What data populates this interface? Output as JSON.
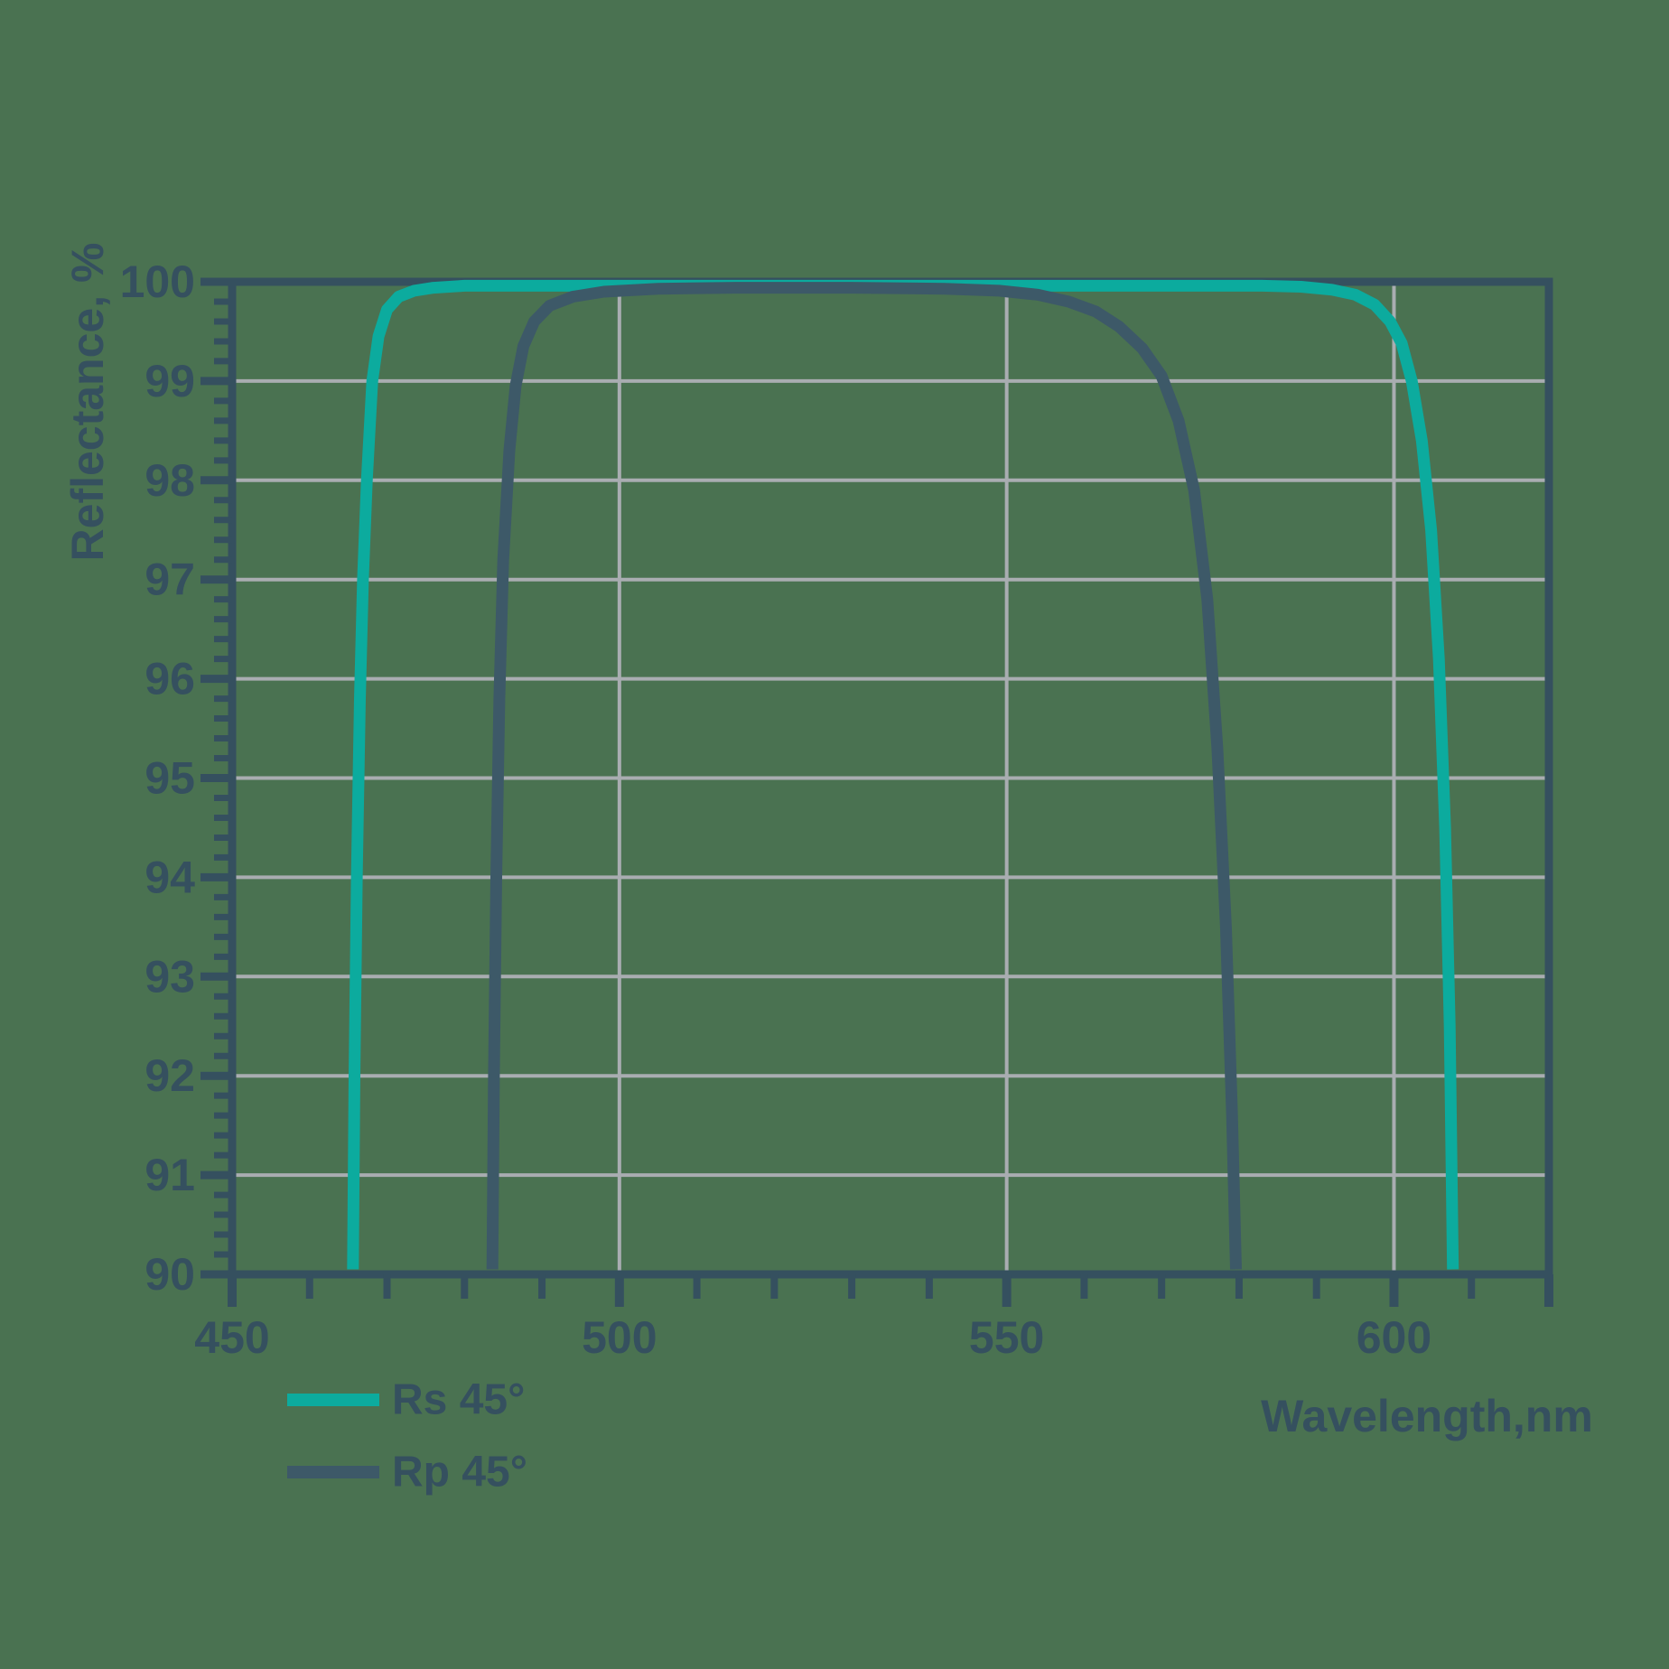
{
  "colors": {
    "background": "#4a7251",
    "axis": "#35505f",
    "grid": "#a9adb1",
    "rs": "#0cab9e",
    "rp": "#3d5968"
  },
  "chart_data": {
    "type": "line",
    "title": "",
    "xlabel": "Wavelength,nm",
    "ylabel": "Reflectance, %",
    "xlim": [
      450,
      620
    ],
    "ylim": [
      90,
      100
    ],
    "x_major_ticks": [
      450,
      500,
      550,
      600
    ],
    "x_edge_tick": 620,
    "x_minor_step": 10,
    "y_major_ticks": [
      100,
      99,
      98,
      97,
      96,
      95,
      94,
      93,
      92,
      91,
      90
    ],
    "y_minor_step": 0.2,
    "x_gridlines": [
      500,
      550,
      600
    ],
    "y_gridlines": [
      99,
      98,
      97,
      96,
      95,
      94,
      93,
      92,
      91
    ],
    "grid": "on",
    "legend_position": "bottom-left",
    "series": [
      {
        "name": "Rs 45°",
        "color": "#0cab9e",
        "points": [
          [
            465.6,
            90.05
          ],
          [
            465.8,
            92
          ],
          [
            466.1,
            94
          ],
          [
            466.5,
            95.8
          ],
          [
            466.9,
            97
          ],
          [
            467.4,
            98
          ],
          [
            468.1,
            99
          ],
          [
            468.9,
            99.45
          ],
          [
            470,
            99.72
          ],
          [
            471.5,
            99.85
          ],
          [
            473.5,
            99.91
          ],
          [
            476,
            99.94
          ],
          [
            480,
            99.96
          ],
          [
            490,
            99.96
          ],
          [
            510,
            99.96
          ],
          [
            530,
            99.96
          ],
          [
            550,
            99.96
          ],
          [
            570,
            99.96
          ],
          [
            583,
            99.96
          ],
          [
            588,
            99.95
          ],
          [
            592,
            99.92
          ],
          [
            595,
            99.87
          ],
          [
            597.5,
            99.77
          ],
          [
            599.5,
            99.6
          ],
          [
            601,
            99.38
          ],
          [
            602.3,
            99
          ],
          [
            603.6,
            98.4
          ],
          [
            604.8,
            97.5
          ],
          [
            605.8,
            96.2
          ],
          [
            606.6,
            94.5
          ],
          [
            607.2,
            92.5
          ],
          [
            607.6,
            90.05
          ]
        ]
      },
      {
        "name": "Rp 45°",
        "color": "#3d5968",
        "points": [
          [
            483.6,
            90.05
          ],
          [
            483.8,
            92
          ],
          [
            484.1,
            94
          ],
          [
            484.5,
            95.8
          ],
          [
            485,
            97.2
          ],
          [
            485.8,
            98.3
          ],
          [
            486.6,
            98.95
          ],
          [
            487.6,
            99.35
          ],
          [
            489,
            99.6
          ],
          [
            491,
            99.76
          ],
          [
            494,
            99.85
          ],
          [
            498,
            99.9
          ],
          [
            505,
            99.93
          ],
          [
            515,
            99.94
          ],
          [
            530,
            99.94
          ],
          [
            542,
            99.93
          ],
          [
            549,
            99.91
          ],
          [
            554,
            99.87
          ],
          [
            558,
            99.8
          ],
          [
            561.5,
            99.7
          ],
          [
            564.5,
            99.55
          ],
          [
            567.5,
            99.33
          ],
          [
            570,
            99.05
          ],
          [
            572.2,
            98.6
          ],
          [
            574.2,
            97.9
          ],
          [
            575.9,
            96.8
          ],
          [
            577.2,
            95.3
          ],
          [
            578.3,
            93.5
          ],
          [
            579.1,
            91.6
          ],
          [
            579.6,
            90.05
          ]
        ]
      }
    ]
  }
}
